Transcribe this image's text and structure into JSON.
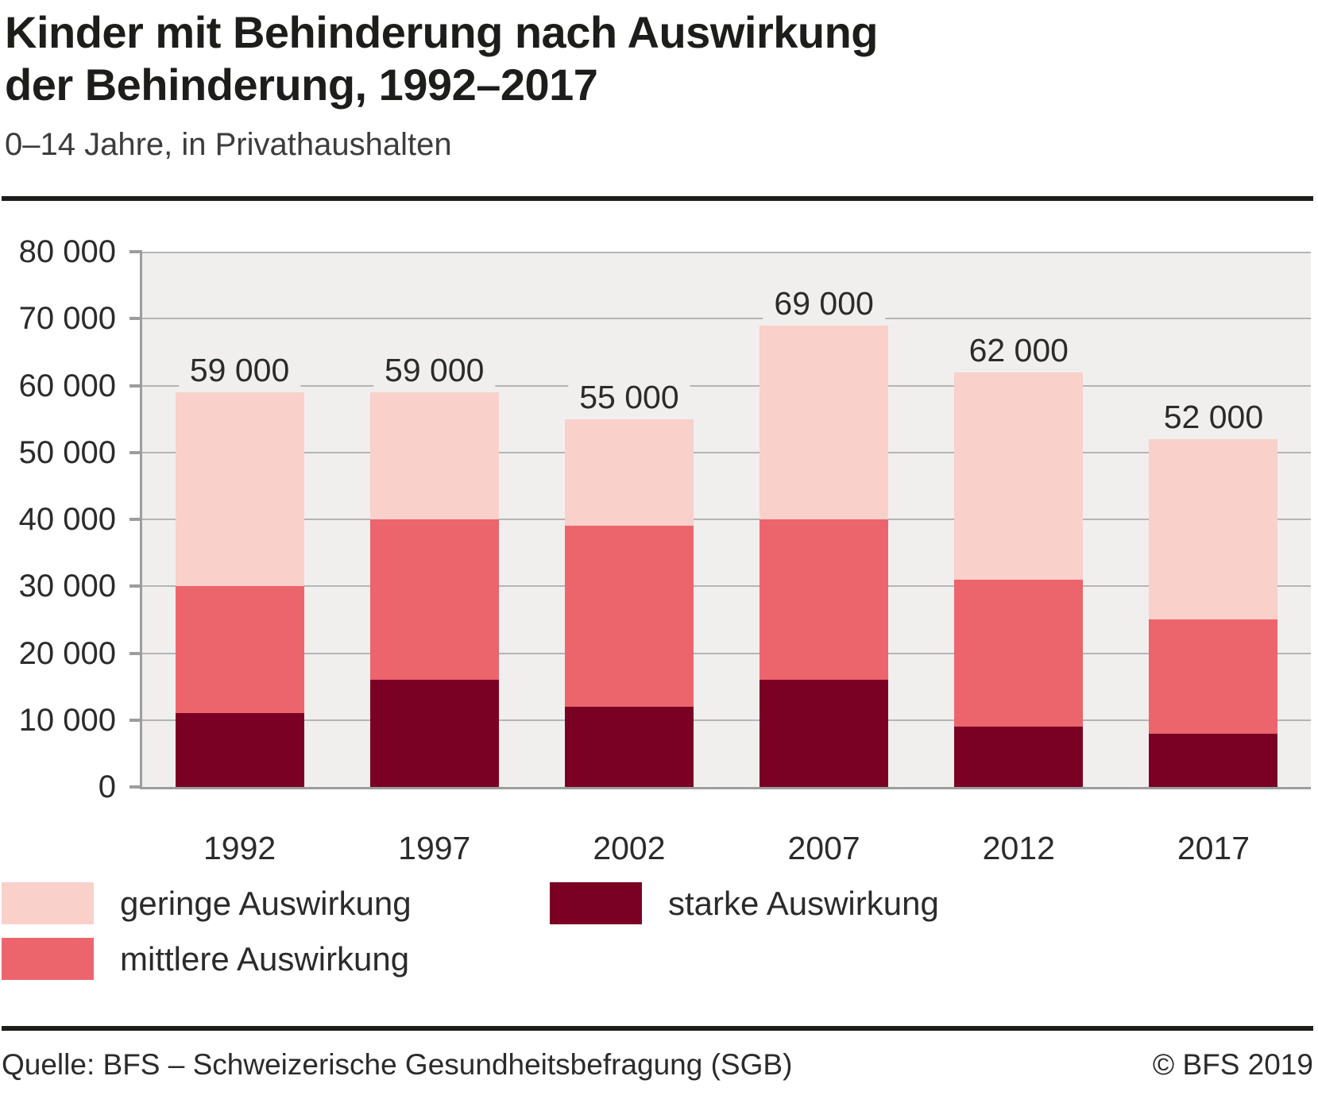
{
  "header": {
    "title_line1": "Kinder mit Behinderung nach Auswirkung",
    "title_line2": "der Behinderung, 1992–2017",
    "subtitle": "0–14 Jahre, in Privathaushalten"
  },
  "chart_data": {
    "type": "bar",
    "stacked": true,
    "title": "Kinder mit Behinderung nach Auswirkung der Behinderung, 1992–2017",
    "subtitle": "0–14 Jahre, in Privathaushalten",
    "categories": [
      "1992",
      "1997",
      "2002",
      "2007",
      "2012",
      "2017"
    ],
    "series": [
      {
        "name": "starke Auswirkung",
        "color": "#7a0123",
        "values": [
          11000,
          16000,
          12000,
          16000,
          9000,
          8000
        ]
      },
      {
        "name": "mittlere Auswirkung",
        "color": "#ec656d",
        "values": [
          19000,
          24000,
          27000,
          24000,
          22000,
          17000
        ]
      },
      {
        "name": "geringe Auswirkung",
        "color": "#f9d0ca",
        "values": [
          29000,
          19000,
          16000,
          29000,
          31000,
          27000
        ]
      }
    ],
    "totals": [
      59000,
      59000,
      55000,
      69000,
      62000,
      52000
    ],
    "total_labels": [
      "59 000",
      "59 000",
      "55 000",
      "69 000",
      "62 000",
      "52 000"
    ],
    "y_axis": {
      "min": 0,
      "max": 80000,
      "tick_interval": 10000,
      "tick_labels": [
        "0",
        "10 000",
        "20 000",
        "30 000",
        "40 000",
        "50 000",
        "60 000",
        "70 000",
        "80 000"
      ]
    },
    "grid": true,
    "legend_position": "bottom"
  },
  "legend": {
    "items": [
      {
        "label": "geringe Auswirkung",
        "color": "#f9d0ca"
      },
      {
        "label": "starke Auswirkung",
        "color": "#7a0123"
      },
      {
        "label": "mittlere Auswirkung",
        "color": "#ec656d"
      }
    ]
  },
  "footer": {
    "source": "Quelle: BFS – Schweizerische Gesundheitsbefragung (SGB)",
    "copyright": "© BFS 2019"
  },
  "colors": {
    "geringe": "#f9d0ca",
    "mittlere": "#ec656d",
    "starke": "#7a0123",
    "plot_background": "#f0efee",
    "gridline": "#b5b5b5",
    "axis": "#9d9d9d",
    "rule": "#1d1d1b"
  }
}
